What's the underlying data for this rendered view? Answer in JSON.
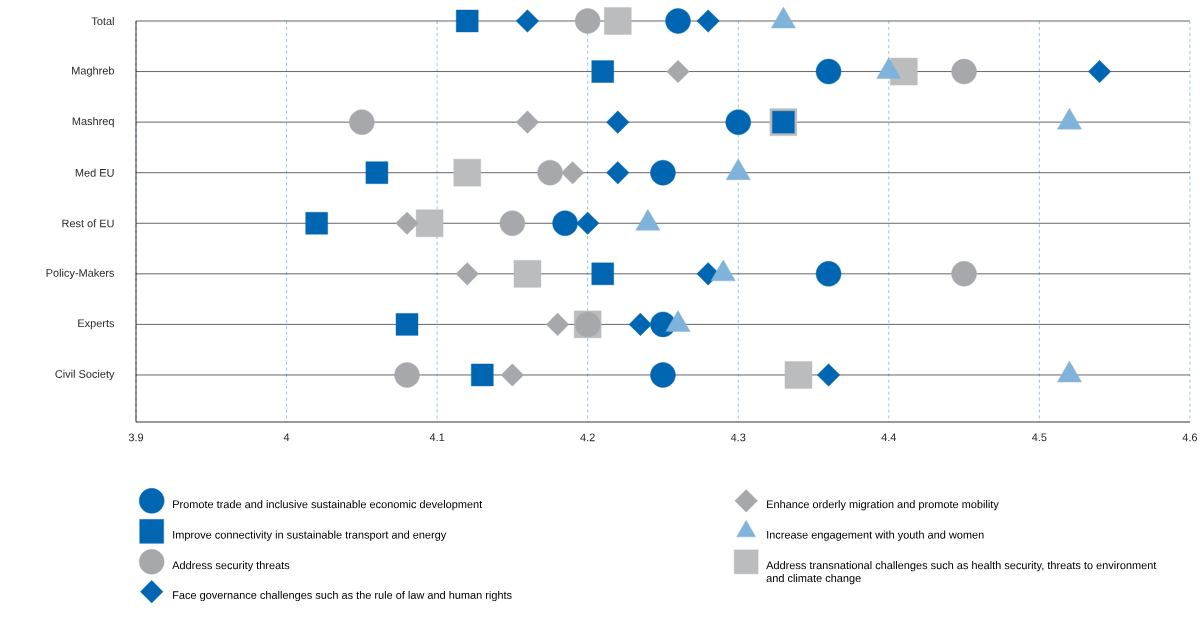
{
  "chart_data": {
    "type": "scatter",
    "orientation": "horizontal",
    "categories": [
      "Total",
      "Maghreb",
      "Mashreq",
      "Med EU",
      "Rest of EU",
      "Policy-Makers",
      "Experts",
      "Civil Society"
    ],
    "xlim": [
      3.9,
      4.6
    ],
    "xticks": [
      3.9,
      4,
      4.1,
      4.2,
      4.3,
      4.4,
      4.5,
      4.6
    ],
    "grid": true,
    "legend": "bottom",
    "series": [
      {
        "name": "Promote trade and inclusive sustainable economic development",
        "color": "#0066b1",
        "marker": "circle",
        "values": [
          4.26,
          4.36,
          4.3,
          4.25,
          4.185,
          4.36,
          4.25,
          4.25
        ]
      },
      {
        "name": "Improve connectivity in sustainable transport and energy",
        "color": "#0066b1",
        "marker": "square",
        "values": [
          4.12,
          4.21,
          4.33,
          4.06,
          4.02,
          4.21,
          4.08,
          4.13
        ]
      },
      {
        "name": "Address security threats",
        "color": "#a7a8ab",
        "marker": "circle",
        "values": [
          4.2,
          4.45,
          4.05,
          4.175,
          4.15,
          4.45,
          4.2,
          4.08
        ]
      },
      {
        "name": "Face governance challenges such as the rule of law and human rights",
        "color": "#0066b1",
        "marker": "diamond",
        "values": [
          4.28,
          4.54,
          4.22,
          4.22,
          4.2,
          4.28,
          4.235,
          4.36
        ]
      },
      {
        "name": "Enhance orderly migration and promote mobility",
        "color": "#a7a8ab",
        "marker": "diamond",
        "values": [
          4.16,
          4.26,
          4.16,
          4.19,
          4.08,
          4.12,
          4.18,
          4.15
        ],
        "colors": [
          "#0066b1",
          "#a7a8ab",
          "#a7a8ab",
          "#a7a8ab",
          "#a7a8ab",
          "#a7a8ab",
          "#a7a8ab",
          "#a7a8ab"
        ]
      },
      {
        "name": "Increase engagement with youth and women",
        "color": "#80b3da",
        "marker": "triangle",
        "values": [
          4.33,
          4.4,
          4.52,
          4.3,
          4.24,
          4.29,
          4.26,
          4.52
        ]
      },
      {
        "name": "Address transnational challenges such as health security, threats to environment and climate change",
        "color": "#bbbcbe",
        "marker": "square",
        "values": [
          4.22,
          4.41,
          4.33,
          4.12,
          4.095,
          4.16,
          4.2,
          4.34
        ]
      }
    ]
  }
}
